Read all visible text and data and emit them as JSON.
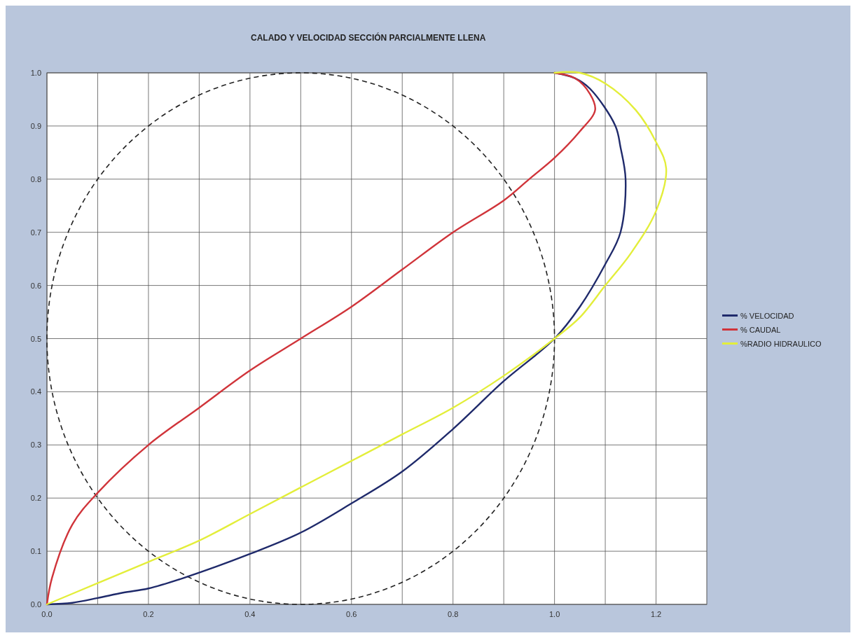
{
  "chart_data": {
    "type": "line",
    "title": "CALADO Y VELOCIDAD SECCIÓN PARCIALMENTE LLENA",
    "xlim": [
      0,
      1.3
    ],
    "ylim": [
      0,
      1
    ],
    "xticks": [
      {
        "value": 0,
        "label": "0.0"
      },
      {
        "value": 0.1,
        "label": null
      },
      {
        "value": 0.2,
        "label": "0.2"
      },
      {
        "value": 0.3,
        "label": null
      },
      {
        "value": 0.4,
        "label": "0.4"
      },
      {
        "value": 0.5,
        "label": null
      },
      {
        "value": 0.6,
        "label": "0.6"
      },
      {
        "value": 0.7,
        "label": null
      },
      {
        "value": 0.8,
        "label": "0.8"
      },
      {
        "value": 0.9,
        "label": null
      },
      {
        "value": 1,
        "label": "1.0"
      },
      {
        "value": 1.1,
        "label": null
      },
      {
        "value": 1.2,
        "label": "1.2"
      }
    ],
    "yticks": [
      {
        "value": 0,
        "label": "0.0"
      },
      {
        "value": 0.1,
        "label": "0.1"
      },
      {
        "value": 0.2,
        "label": "0.2"
      },
      {
        "value": 0.3,
        "label": "0.3"
      },
      {
        "value": 0.4,
        "label": "0.4"
      },
      {
        "value": 0.5,
        "label": "0.5"
      },
      {
        "value": 0.6,
        "label": "0.6"
      },
      {
        "value": 0.7,
        "label": "0.7"
      },
      {
        "value": 0.8,
        "label": "0.8"
      },
      {
        "value": 0.9,
        "label": "0.9"
      },
      {
        "value": 1,
        "label": "1.0"
      }
    ],
    "grid": true,
    "legend": "right",
    "series": [
      {
        "name": "% VELOCIDAD",
        "color": "#1f2a6b",
        "x": [
          0,
          0.05,
          0.1,
          0.15,
          0.2,
          0.27,
          0.4,
          0.5,
          0.6,
          0.7,
          0.8,
          0.9,
          1.0,
          1.05,
          1.1,
          1.13,
          1.14,
          1.13,
          1.12,
          1.07,
          1.04,
          1.0
        ],
        "values": [
          0,
          0.003,
          0.012,
          0.022,
          0.03,
          0.05,
          0.095,
          0.135,
          0.19,
          0.25,
          0.33,
          0.42,
          0.5,
          0.56,
          0.64,
          0.7,
          0.8,
          0.86,
          0.9,
          0.97,
          0.99,
          1.0
        ]
      },
      {
        "name": "% CAUDAL",
        "color": "#d0343a",
        "x": [
          0,
          0.01,
          0.05,
          0.1,
          0.2,
          0.3,
          0.4,
          0.5,
          0.6,
          0.7,
          0.8,
          0.9,
          0.95,
          1.0,
          1.05,
          1.08,
          1.07,
          1.04,
          1.0
        ],
        "values": [
          0,
          0.05,
          0.15,
          0.21,
          0.3,
          0.37,
          0.44,
          0.5,
          0.56,
          0.63,
          0.7,
          0.76,
          0.8,
          0.84,
          0.89,
          0.93,
          0.96,
          0.99,
          1.0
        ]
      },
      {
        "name": "%RADIO HIDRAULICO",
        "color": "#e3ee3a",
        "x": [
          0,
          0.1,
          0.2,
          0.3,
          0.4,
          0.5,
          0.6,
          0.7,
          0.8,
          0.9,
          1.0,
          1.05,
          1.1,
          1.15,
          1.2,
          1.22,
          1.2,
          1.16,
          1.1,
          1.05,
          1.0
        ],
        "values": [
          0,
          0.04,
          0.08,
          0.12,
          0.17,
          0.22,
          0.27,
          0.32,
          0.37,
          0.43,
          0.5,
          0.54,
          0.6,
          0.66,
          0.74,
          0.82,
          0.87,
          0.93,
          0.98,
          1.0,
          1.0
        ]
      }
    ]
  }
}
